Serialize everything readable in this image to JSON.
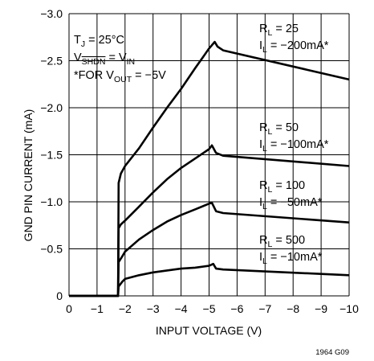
{
  "chart_data": {
    "type": "line",
    "xlabel": "INPUT VOLTAGE (V)",
    "ylabel": "GND PIN CURRENT (mA)",
    "xlim": [
      0,
      -10
    ],
    "ylim": [
      0,
      -3.0
    ],
    "grid": true,
    "x_ticks": [
      "0",
      "−1",
      "−2",
      "−3",
      "−4",
      "−5",
      "−6",
      "−7",
      "−8",
      "−9",
      "−10"
    ],
    "y_ticks": [
      "0",
      "−0.5",
      "−1.0",
      "−1.5",
      "−2.0",
      "−2.5",
      "−3.0"
    ],
    "conditions": {
      "tj": [
        "T",
        "J",
        " = 25°C"
      ],
      "shdn": [
        "V",
        "SHDN",
        " = V",
        "IN"
      ],
      "vout": [
        "*FOR V",
        "OUT",
        " = −5V"
      ]
    },
    "series": [
      {
        "label_rl": [
          "R",
          "L",
          " = 25"
        ],
        "label_il": [
          "I",
          "L",
          " = −200mA*"
        ],
        "points": [
          [
            0,
            0
          ],
          [
            -1.75,
            0
          ],
          [
            -1.77,
            -1.2
          ],
          [
            -1.85,
            -1.3
          ],
          [
            -2.0,
            -1.38
          ],
          [
            -2.5,
            -1.57
          ],
          [
            -3.0,
            -1.79
          ],
          [
            -3.5,
            -2.0
          ],
          [
            -4.0,
            -2.2
          ],
          [
            -4.5,
            -2.42
          ],
          [
            -5.0,
            -2.63
          ],
          [
            -5.2,
            -2.7
          ],
          [
            -5.3,
            -2.65
          ],
          [
            -5.5,
            -2.61
          ],
          [
            -10,
            -2.3
          ]
        ]
      },
      {
        "label_rl": [
          "R",
          "L",
          " = 50"
        ],
        "label_il": [
          "I",
          "L",
          " = −100mA*"
        ],
        "points": [
          [
            0,
            0
          ],
          [
            -1.75,
            0
          ],
          [
            -1.77,
            -0.72
          ],
          [
            -1.85,
            -0.76
          ],
          [
            -2.0,
            -0.8
          ],
          [
            -2.5,
            -0.95
          ],
          [
            -3.0,
            -1.1
          ],
          [
            -3.5,
            -1.24
          ],
          [
            -4.0,
            -1.36
          ],
          [
            -4.5,
            -1.46
          ],
          [
            -5.0,
            -1.56
          ],
          [
            -5.1,
            -1.6
          ],
          [
            -5.25,
            -1.52
          ],
          [
            -5.5,
            -1.49
          ],
          [
            -10,
            -1.38
          ]
        ]
      },
      {
        "label_rl": [
          "R",
          "L",
          " = 100"
        ],
        "label_il": [
          "I",
          "L",
          " = −50mA*"
        ],
        "points": [
          [
            0,
            0
          ],
          [
            -1.75,
            0
          ],
          [
            -1.77,
            -0.36
          ],
          [
            -1.9,
            -0.42
          ],
          [
            -2.0,
            -0.47
          ],
          [
            -2.5,
            -0.6
          ],
          [
            -3.0,
            -0.7
          ],
          [
            -3.5,
            -0.79
          ],
          [
            -4.0,
            -0.86
          ],
          [
            -4.5,
            -0.92
          ],
          [
            -5.0,
            -0.98
          ],
          [
            -5.1,
            -0.99
          ],
          [
            -5.25,
            -0.9
          ],
          [
            -5.5,
            -0.88
          ],
          [
            -10,
            -0.78
          ]
        ]
      },
      {
        "label_rl": [
          "R",
          "L",
          " = 500"
        ],
        "label_il": [
          "I",
          "L",
          " = −10mA*"
        ],
        "points": [
          [
            0,
            0
          ],
          [
            -1.75,
            0
          ],
          [
            -1.77,
            -0.1
          ],
          [
            -1.9,
            -0.15
          ],
          [
            -2.0,
            -0.18
          ],
          [
            -2.5,
            -0.22
          ],
          [
            -3.0,
            -0.25
          ],
          [
            -3.5,
            -0.27
          ],
          [
            -4.0,
            -0.29
          ],
          [
            -4.5,
            -0.3
          ],
          [
            -5.0,
            -0.32
          ],
          [
            -5.15,
            -0.34
          ],
          [
            -5.25,
            -0.29
          ],
          [
            -5.5,
            -0.28
          ],
          [
            -10,
            -0.22
          ]
        ]
      }
    ]
  },
  "figure_id": "1964 G09"
}
